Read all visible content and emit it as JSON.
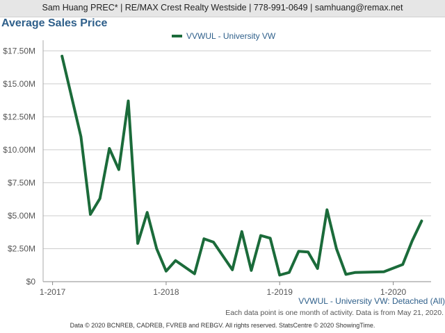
{
  "header": {
    "text": "Sam Huang PREC* | RE/MAX Crest Realty Westside | 778-991-0649 | samhuang@remax.net"
  },
  "chart_data": {
    "type": "line",
    "title": "Average Sales Price",
    "xlabel": "",
    "ylabel": "",
    "y_ticks": [
      "$0",
      "$2.50M",
      "$5.00M",
      "$7.50M",
      "$10.00M",
      "$12.50M",
      "$15.00M",
      "$17.50M"
    ],
    "y_tick_values": [
      0,
      2.5,
      5,
      7.5,
      10,
      12.5,
      15,
      17.5
    ],
    "ylim": [
      0,
      18.2
    ],
    "x_ticks": [
      "1-2017",
      "1-2018",
      "1-2019",
      "1-2020"
    ],
    "x_tick_values": [
      "2017-01",
      "2018-01",
      "2019-01",
      "2020-01"
    ],
    "xlim": [
      "2016-12",
      "2020-05"
    ],
    "grid": true,
    "legend": "top-center",
    "series": [
      {
        "name": "VVWUL - University VW",
        "color": "#1b6b3a",
        "points": [
          [
            "2017-02",
            17.1
          ],
          [
            "2017-04",
            11.0
          ],
          [
            "2017-05",
            5.1
          ],
          [
            "2017-06",
            6.3
          ],
          [
            "2017-07",
            10.1
          ],
          [
            "2017-08",
            8.5
          ],
          [
            "2017-09",
            13.7
          ],
          [
            "2017-10",
            2.9
          ],
          [
            "2017-11",
            5.25
          ],
          [
            "2017-12",
            2.5
          ],
          [
            "2018-01",
            0.8
          ],
          [
            "2018-02",
            1.6
          ],
          [
            "2018-04",
            0.6
          ],
          [
            "2018-05",
            3.25
          ],
          [
            "2018-06",
            3.0
          ],
          [
            "2018-08",
            0.9
          ],
          [
            "2018-09",
            3.8
          ],
          [
            "2018-10",
            0.85
          ],
          [
            "2018-11",
            3.5
          ],
          [
            "2018-12",
            3.3
          ],
          [
            "2019-01",
            0.5
          ],
          [
            "2019-02",
            0.7
          ],
          [
            "2019-03",
            2.3
          ],
          [
            "2019-04",
            2.25
          ],
          [
            "2019-05",
            1.0
          ],
          [
            "2019-06",
            5.45
          ],
          [
            "2019-07",
            2.5
          ],
          [
            "2019-08",
            0.55
          ],
          [
            "2019-09",
            0.7
          ],
          [
            "2019-12",
            0.75
          ],
          [
            "2020-02",
            1.3
          ],
          [
            "2020-03",
            3.1
          ],
          [
            "2020-04",
            4.6
          ]
        ]
      }
    ]
  },
  "series_caption": "VVWUL - University VW: Detached (All)",
  "note": "Each data point is one month of activity. Data is from May 21, 2020.",
  "footer": "Data © 2020 BCNREB, CADREB, FVREB and REBGV. All rights reserved. StatsCentre © 2020 ShowingTime."
}
